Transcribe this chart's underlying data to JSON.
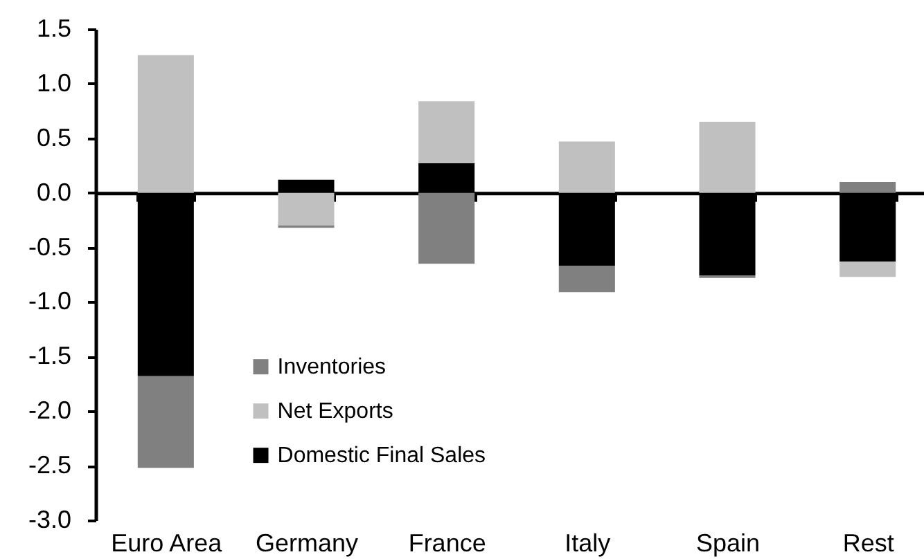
{
  "chart_data": {
    "type": "bar",
    "categories": [
      "Euro Area",
      "Germany",
      "France",
      "Italy",
      "Spain",
      "Rest"
    ],
    "stacked": true,
    "series": [
      {
        "name": "Domestic Final Sales",
        "color": "#000000",
        "values": [
          -1.68,
          0.12,
          0.27,
          -0.67,
          -0.76,
          -0.63
        ]
      },
      {
        "name": "Net Exports",
        "color": "#c0c0c0",
        "values": [
          1.26,
          -0.3,
          0.57,
          0.47,
          0.65,
          -0.14
        ]
      },
      {
        "name": "Inventories",
        "color": "#808080",
        "values": [
          -0.84,
          -0.02,
          -0.65,
          -0.24,
          -0.02,
          0.1
        ]
      }
    ],
    "ylim": [
      -3,
      1.5
    ],
    "yticks": [
      {
        "value": -3,
        "label": "-3.0"
      },
      -2.5,
      {
        "value": -2,
        "label": "-2.0"
      },
      -1.5,
      {
        "value": -1,
        "label": "-1.0"
      },
      -0.5,
      {
        "value": 0,
        "label": "0.0"
      },
      0.5,
      {
        "value": 1,
        "label": "1.0"
      },
      1.5
    ],
    "legend": "bottom left"
  }
}
